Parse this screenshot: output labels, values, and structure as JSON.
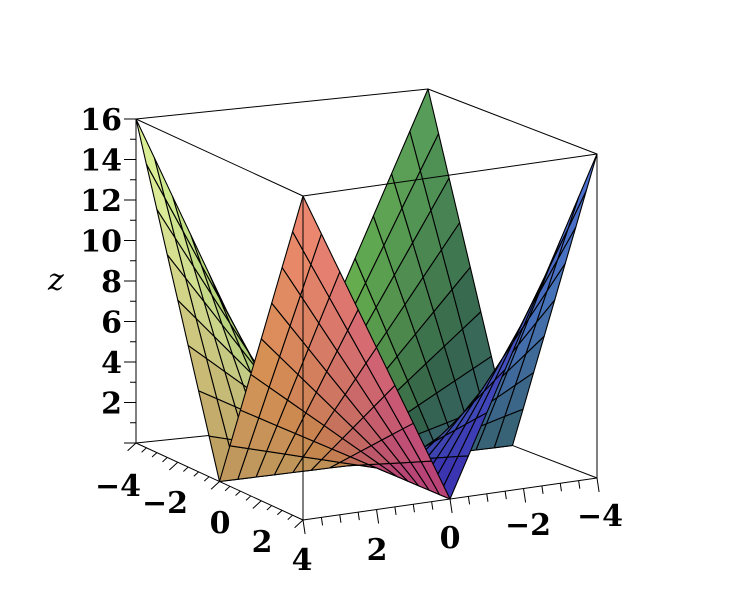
{
  "chart_data": {
    "type": "surface3d",
    "function": "z = x^2 + y^2 - ... (peaked corners, saddle-like surface)",
    "grid": {
      "x_range": [
        -4,
        4
      ],
      "y_range": [
        -4,
        4
      ],
      "divisions": 16
    },
    "z_range": [
      0,
      16
    ],
    "zlabel": "z",
    "z_ticks": [
      "2",
      "4",
      "6",
      "8",
      "10",
      "12",
      "14",
      "16"
    ],
    "x_ticks": [
      "−4",
      "−2",
      "0",
      "2",
      "4"
    ],
    "y_ticks": [
      "2",
      "0",
      "−2",
      "−4"
    ],
    "box": true,
    "colormap": [
      "#e8509a",
      "#f7a560",
      "#e9f7a0",
      "#8be85a",
      "#3f7a5a",
      "#4f7fd0",
      "#4a3ee0"
    ]
  }
}
